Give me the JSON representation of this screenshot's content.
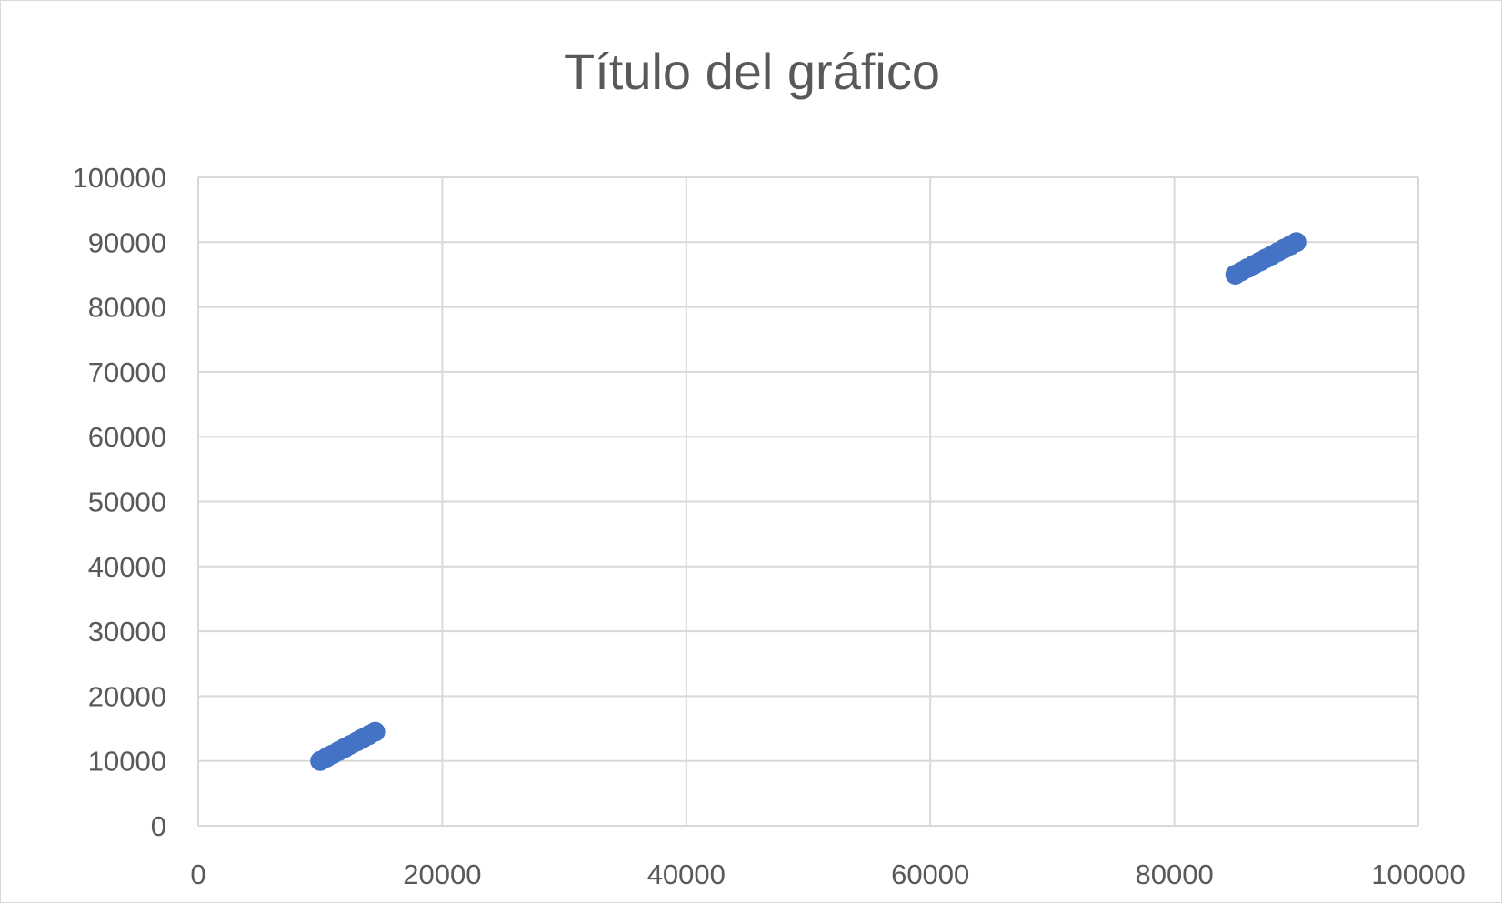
{
  "chart_data": {
    "type": "scatter",
    "title": "Título del gráfico",
    "xlabel": "",
    "ylabel": "",
    "xlim": [
      0,
      100000
    ],
    "ylim": [
      0,
      100000
    ],
    "x_ticks": [
      0,
      20000,
      40000,
      60000,
      80000,
      100000
    ],
    "y_ticks": [
      0,
      10000,
      20000,
      30000,
      40000,
      50000,
      60000,
      70000,
      80000,
      90000,
      100000
    ],
    "grid": true,
    "legend": "none",
    "series": [
      {
        "color": "#4472c4",
        "points": [
          {
            "x": 10000,
            "y": 10000
          },
          {
            "x": 10500,
            "y": 10500
          },
          {
            "x": 11000,
            "y": 11000
          },
          {
            "x": 11500,
            "y": 11500
          },
          {
            "x": 12000,
            "y": 12000
          },
          {
            "x": 12500,
            "y": 12500
          },
          {
            "x": 13000,
            "y": 13000
          },
          {
            "x": 13500,
            "y": 13500
          },
          {
            "x": 14000,
            "y": 14000
          },
          {
            "x": 14500,
            "y": 14500
          },
          {
            "x": 85000,
            "y": 85000
          },
          {
            "x": 85500,
            "y": 85500
          },
          {
            "x": 86000,
            "y": 86000
          },
          {
            "x": 86500,
            "y": 86500
          },
          {
            "x": 87000,
            "y": 87000
          },
          {
            "x": 87500,
            "y": 87500
          },
          {
            "x": 88000,
            "y": 88000
          },
          {
            "x": 88500,
            "y": 88500
          },
          {
            "x": 89000,
            "y": 89000
          },
          {
            "x": 89500,
            "y": 89500
          },
          {
            "x": 90000,
            "y": 90000
          }
        ]
      }
    ]
  }
}
